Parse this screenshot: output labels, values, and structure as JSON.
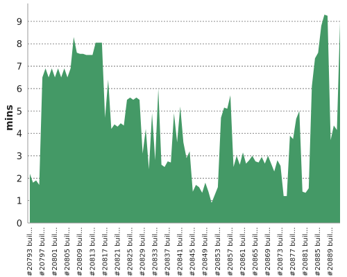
{
  "chart_data": {
    "type": "area",
    "title": "",
    "xlabel": "",
    "ylabel": "mins",
    "ylim": [
      0,
      9.8
    ],
    "yticks": [
      0,
      1,
      2,
      3,
      4,
      5,
      6,
      7,
      8,
      9
    ],
    "grid": true,
    "color": "#449966",
    "x_tick_labels": [
      "#20793 buil...",
      "#20797 buil...",
      "#20801 buil...",
      "#20805 buil...",
      "#20809 buil...",
      "#20813 buil...",
      "#20817 buil...",
      "#20821 buil...",
      "#20825 buil...",
      "#20829 buil...",
      "#20833 buil...",
      "#20837 buil...",
      "#20841 buil...",
      "#20845 buil...",
      "#20849 buil...",
      "#20853 buil...",
      "#20857 buil...",
      "#20861 buil...",
      "#20865 buil...",
      "#20869 buil...",
      "#20873 buil...",
      "#20877 buil...",
      "#20881 buil...",
      "#20885 buil...",
      "#20889 buil..."
    ],
    "series": [
      {
        "values": [
          2.2,
          1.8,
          1.9,
          1.7,
          6.5,
          6.9,
          6.5,
          6.9,
          6.5,
          6.9,
          6.5,
          6.9,
          6.5,
          6.9,
          8.3,
          7.6,
          7.55,
          7.55,
          7.5,
          7.5,
          7.5,
          8.05,
          8.05,
          8.05,
          4.7,
          6.4,
          4.2,
          4.4,
          4.3,
          4.45,
          4.35,
          5.5,
          5.6,
          5.5,
          5.6,
          5.5,
          3.1,
          4.2,
          2.4,
          4.9,
          2.8,
          6.0,
          2.6,
          2.5,
          2.75,
          2.7,
          4.9,
          3.6,
          5.2,
          3.6,
          2.9,
          3.2,
          1.4,
          1.7,
          1.6,
          1.35,
          1.8,
          1.4,
          0.9,
          1.25,
          1.6,
          4.7,
          5.15,
          5.1,
          5.7,
          2.5,
          3.0,
          2.6,
          3.15,
          2.65,
          2.8,
          3.0,
          2.75,
          2.7,
          2.95,
          2.65,
          3.0,
          2.65,
          2.3,
          2.8,
          2.55,
          1.2,
          1.2,
          3.9,
          3.75,
          4.65,
          5.0,
          1.4,
          1.35,
          1.55,
          6.1,
          7.35,
          7.6,
          8.8,
          9.3,
          9.25,
          3.7,
          4.35,
          4.15,
          9.0
        ]
      }
    ]
  }
}
